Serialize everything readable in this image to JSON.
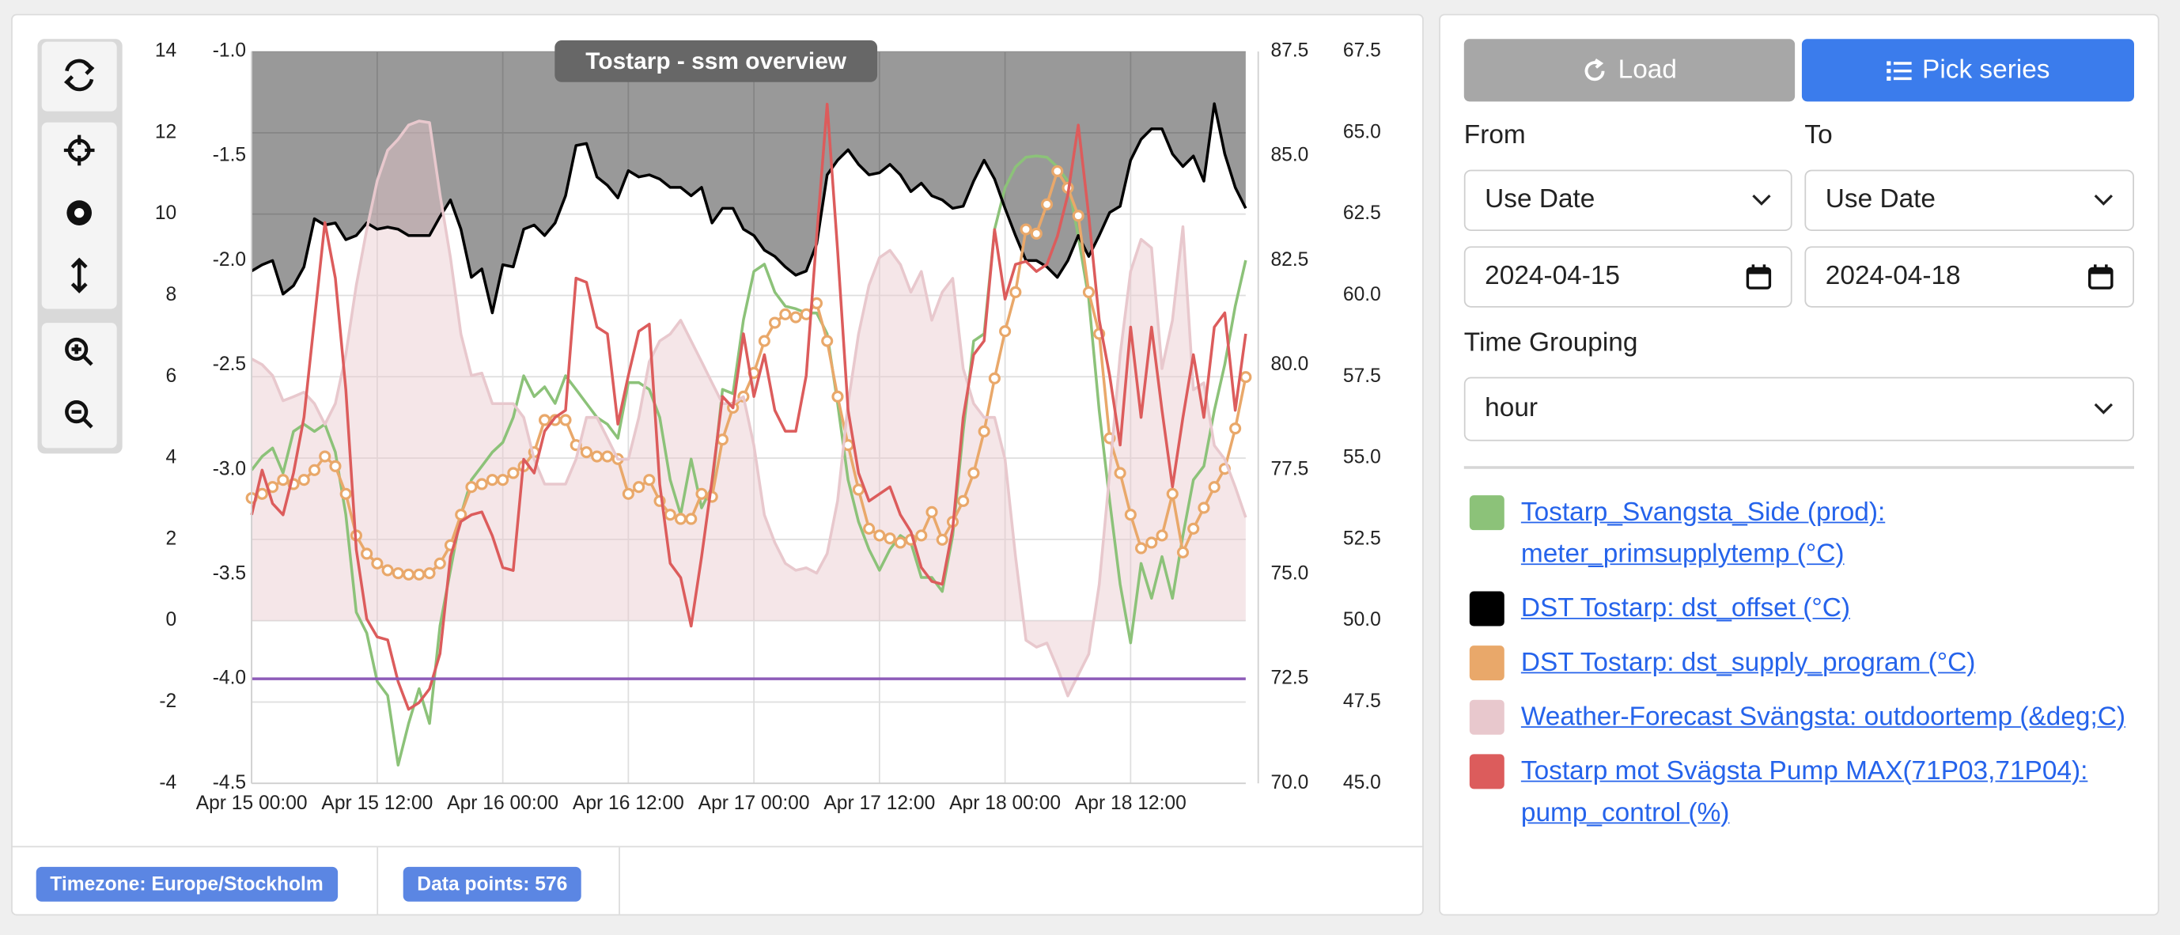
{
  "chart_data": {
    "type": "line",
    "title": "Tostarp - ssm overview",
    "grid": true,
    "categories": [
      "Apr 15 00:00",
      null,
      null,
      null,
      null,
      null,
      null,
      null,
      null,
      null,
      null,
      null,
      "Apr 15 12:00",
      null,
      null,
      null,
      null,
      null,
      null,
      null,
      null,
      null,
      null,
      null,
      "Apr 16 00:00",
      null,
      null,
      null,
      null,
      null,
      null,
      null,
      null,
      null,
      null,
      null,
      "Apr 16 12:00",
      null,
      null,
      null,
      null,
      null,
      null,
      null,
      null,
      null,
      null,
      null,
      "Apr 17 00:00",
      null,
      null,
      null,
      null,
      null,
      null,
      null,
      null,
      null,
      null,
      null,
      "Apr 17 12:00",
      null,
      null,
      null,
      null,
      null,
      null,
      null,
      null,
      null,
      null,
      null,
      "Apr 18 00:00",
      null,
      null,
      null,
      null,
      null,
      null,
      null,
      null,
      null,
      null,
      null,
      "Apr 18 12:00",
      null,
      null,
      null,
      null,
      null,
      null,
      null,
      null,
      null,
      null,
      null
    ],
    "ylim": [
      -4,
      14
    ],
    "yticks": [
      -4,
      -2,
      0,
      2,
      4,
      6,
      8,
      10,
      12,
      14
    ],
    "y2lim": [
      -4.5,
      -1
    ],
    "y2ticks": [
      -4.5,
      {
        "value": -4,
        "label": "-4.0"
      },
      -3.5,
      {
        "value": -3,
        "label": "-3.0"
      },
      -2.5,
      {
        "value": -2,
        "label": "-2.0"
      },
      -1.5,
      {
        "value": -1,
        "label": "-1.0"
      }
    ],
    "y3lim": [
      70,
      87.5
    ],
    "y3ticks": [
      {
        "value": 70,
        "label": "70.0"
      },
      72.5,
      {
        "value": 75,
        "label": "75.0"
      },
      77.5,
      {
        "value": 80,
        "label": "80.0"
      },
      82.5,
      {
        "value": 85,
        "label": "85.0"
      },
      87.5
    ],
    "y4lim": [
      45,
      67.5
    ],
    "y4ticks": [
      {
        "value": 45,
        "label": "45.0"
      },
      47.5,
      {
        "value": 50,
        "label": "50.0"
      },
      52.5,
      {
        "value": 55,
        "label": "55.0"
      },
      57.5,
      {
        "value": 60,
        "label": "60.0"
      },
      62.5,
      {
        "value": 65,
        "label": "65.0"
      },
      67.5
    ],
    "series": [
      {
        "name": "Tostarp_Svangsta_Side (prod): meter_primsupplytemp (°C)",
        "color": "#8cc279",
        "axis": "y4",
        "values": [
          54.63,
          55.05,
          55.31,
          54.54,
          55.82,
          56.04,
          55.82,
          56.04,
          55.18,
          53.26,
          50.26,
          49.62,
          48.13,
          47.7,
          45.56,
          46.84,
          47.91,
          46.84,
          49.84,
          51.55,
          53.26,
          54.33,
          54.75,
          55.18,
          55.48,
          56.25,
          57.53,
          56.89,
          57.19,
          56.68,
          57.53,
          57.11,
          56.68,
          56.25,
          56.04,
          55.61,
          57.32,
          57.32,
          57.11,
          56.25,
          54.33,
          53.26,
          54.97,
          53.47,
          54.11,
          57.11,
          56.98,
          59.25,
          60.74,
          60.96,
          60.1,
          59.67,
          59.59,
          59.46,
          59.46,
          58.82,
          56.68,
          54.33,
          53.04,
          52.19,
          51.55,
          52.19,
          52.62,
          52.4,
          51.33,
          51.33,
          50.9,
          52.62,
          55.82,
          58.6,
          58.82,
          62.03,
          63.31,
          63.95,
          64.25,
          64.29,
          64.25,
          63.95,
          63.52,
          61.81,
          59.89,
          56.46,
          53.68,
          51.12,
          49.32,
          51.76,
          50.69,
          51.97,
          50.69,
          52.62,
          54.33,
          54.75,
          56.46,
          57.88,
          59.67,
          61.08
        ]
      },
      {
        "name": "DST Tostarp: dst_offset (°C)",
        "color": "#000000",
        "axis": "y2",
        "area": "above",
        "values": [
          -2.05,
          -2.02,
          -2.0,
          -2.16,
          -2.12,
          -2.03,
          -1.8,
          -1.83,
          -1.82,
          -1.9,
          -1.88,
          -1.82,
          -1.85,
          -1.84,
          -1.85,
          -1.88,
          -1.88,
          -1.88,
          -1.79,
          -1.71,
          -1.85,
          -2.08,
          -2.04,
          -2.25,
          -2.02,
          -2.03,
          -1.85,
          -1.83,
          -1.88,
          -1.82,
          -1.69,
          -1.45,
          -1.44,
          -1.6,
          -1.64,
          -1.7,
          -1.57,
          -1.6,
          -1.59,
          -1.61,
          -1.65,
          -1.65,
          -1.69,
          -1.65,
          -1.82,
          -1.75,
          -1.75,
          -1.85,
          -1.88,
          -1.95,
          -1.98,
          -2.03,
          -2.07,
          -2.05,
          -1.92,
          -1.59,
          -1.52,
          -1.47,
          -1.54,
          -1.59,
          -1.58,
          -1.54,
          -1.59,
          -1.67,
          -1.63,
          -1.69,
          -1.71,
          -1.75,
          -1.74,
          -1.62,
          -1.52,
          -1.61,
          -1.75,
          -1.88,
          -2.0,
          -2.0,
          -2.03,
          -2.08,
          -2.0,
          -1.88,
          -1.98,
          -1.88,
          -1.77,
          -1.74,
          -1.52,
          -1.42,
          -1.37,
          -1.37,
          -1.49,
          -1.55,
          -1.5,
          -1.62,
          -1.25,
          -1.49,
          -1.65,
          -1.75
        ]
      },
      {
        "name": "DST Tostarp: dst_supply_program (°C)",
        "color": "#e9a86a",
        "axis": "y4",
        "markers": true,
        "values": [
          53.77,
          53.9,
          54.11,
          54.33,
          54.2,
          54.33,
          54.63,
          55.05,
          54.75,
          53.9,
          52.62,
          52.06,
          51.76,
          51.55,
          51.46,
          51.42,
          51.42,
          51.46,
          51.76,
          52.32,
          53.26,
          54.11,
          54.2,
          54.33,
          54.33,
          54.54,
          54.75,
          55.18,
          56.17,
          56.17,
          56.17,
          55.4,
          55.18,
          55.05,
          55.05,
          54.97,
          53.9,
          54.11,
          54.33,
          53.68,
          53.26,
          53.13,
          53.13,
          53.9,
          53.81,
          55.57,
          56.55,
          56.89,
          57.62,
          58.6,
          59.16,
          59.42,
          59.33,
          59.42,
          59.76,
          58.6,
          56.89,
          55.4,
          54.03,
          52.83,
          52.62,
          52.53,
          52.4,
          52.49,
          52.62,
          53.34,
          52.49,
          53.04,
          53.68,
          54.54,
          55.82,
          57.45,
          58.9,
          60.1,
          62.03,
          61.9,
          62.8,
          63.82,
          63.31,
          62.45,
          60.1,
          58.82,
          55.61,
          54.54,
          53.26,
          52.23,
          52.4,
          52.62,
          53.9,
          52.1,
          52.83,
          53.47,
          54.11,
          54.67,
          55.91,
          57.49
        ]
      },
      {
        "name": "Weather-Forecast Svängsta: outdoortemp (&deg;C)",
        "color": "#e8c8cd",
        "axis": "y",
        "area": "zero",
        "values": [
          6.44,
          6.3,
          6.03,
          5.41,
          5.51,
          5.62,
          5.34,
          4.83,
          5.34,
          6.54,
          8.25,
          9.62,
          10.82,
          11.57,
          11.84,
          12.19,
          12.29,
          12.25,
          10.48,
          8.93,
          7.05,
          6.03,
          6.09,
          5.34,
          5.34,
          5.34,
          5.0,
          3.97,
          3.36,
          3.36,
          3.36,
          3.97,
          5.0,
          5.0,
          4.49,
          3.97,
          3.97,
          5.0,
          6.37,
          6.88,
          7.05,
          7.39,
          6.88,
          6.37,
          5.85,
          5.34,
          5.34,
          5.51,
          4.31,
          2.6,
          1.92,
          1.41,
          1.24,
          1.3,
          1.17,
          1.65,
          2.95,
          5.34,
          7.05,
          8.25,
          8.93,
          9.11,
          8.76,
          8.08,
          8.59,
          7.39,
          8.08,
          8.42,
          6.2,
          5.34,
          5.0,
          5.0,
          3.97,
          1.58,
          -0.48,
          -0.65,
          -0.55,
          -1.16,
          -1.85,
          -1.33,
          -0.82,
          0.89,
          3.63,
          6.54,
          8.59,
          9.38,
          9.17,
          6.2,
          7.39,
          9.69,
          5.68,
          5.85,
          4.31,
          3.97,
          3.29,
          2.54
        ]
      },
      {
        "name": "Tostarp mot Svägsta Pump MAX(71P03,71P04): pump_control (%)",
        "color": "#dc5c5c",
        "axis": "y3",
        "values": [
          76.42,
          77.49,
          76.69,
          76.42,
          77.42,
          78.75,
          81.08,
          83.41,
          82.08,
          79.42,
          75.59,
          73.93,
          73.5,
          73.43,
          72.43,
          71.77,
          71.93,
          72.26,
          73.1,
          75.42,
          76.26,
          76.42,
          76.49,
          75.92,
          75.16,
          75.09,
          77.75,
          77.42,
          78.42,
          78.75,
          78.92,
          82.08,
          81.98,
          80.91,
          80.75,
          78.59,
          79.75,
          80.81,
          80.98,
          77.15,
          75.26,
          74.92,
          73.76,
          75.42,
          77.25,
          79.25,
          78.98,
          80.75,
          79.25,
          80.25,
          78.92,
          78.42,
          78.42,
          79.75,
          83.08,
          86.24,
          82.74,
          78.92,
          77.42,
          76.75,
          76.92,
          77.09,
          76.42,
          76.02,
          75.16,
          74.83,
          74.76,
          76.09,
          78.75,
          80.25,
          80.58,
          83.24,
          81.58,
          82.41,
          82.48,
          82.24,
          82.41,
          83.08,
          84.07,
          85.74,
          83.57,
          81.08,
          79.75,
          78.09,
          80.91,
          78.75,
          80.91,
          78.92,
          77.09,
          78.75,
          80.25,
          78.75,
          80.91,
          81.25,
          78.92,
          80.75
        ]
      },
      {
        "color": "#8d5bb8",
        "axis": "y2",
        "values": [
          -4,
          -4,
          -4,
          -4,
          -4,
          -4,
          -4,
          -4,
          -4,
          -4,
          -4,
          -4,
          -4,
          -4,
          -4,
          -4,
          -4,
          -4,
          -4,
          -4,
          -4,
          -4,
          -4,
          -4,
          -4,
          -4,
          -4,
          -4,
          -4,
          -4,
          -4,
          -4,
          -4,
          -4,
          -4,
          -4,
          -4,
          -4,
          -4,
          -4,
          -4,
          -4,
          -4,
          -4,
          -4,
          -4,
          -4,
          -4,
          -4,
          -4,
          -4,
          -4,
          -4,
          -4,
          -4,
          -4,
          -4,
          -4,
          -4,
          -4,
          -4,
          -4,
          -4,
          -4,
          -4,
          -4,
          -4,
          -4,
          -4,
          -4,
          -4,
          -4,
          -4,
          -4,
          -4,
          -4,
          -4,
          -4,
          -4,
          -4,
          -4,
          -4,
          -4,
          -4,
          -4,
          -4,
          -4,
          -4,
          -4,
          -4,
          -4,
          -4,
          -4,
          -4,
          -4,
          -4
        ]
      }
    ]
  },
  "footer": {
    "timezone": "Timezone: Europe/Stockholm",
    "data_points": "Data points: 576"
  },
  "controls": {
    "load": "Load",
    "pick_series": "Pick series",
    "from_label": "From",
    "to_label": "To",
    "from_mode": "Use Date",
    "to_mode": "Use Date",
    "from_date": "2024-04-15",
    "to_date": "2024-04-18",
    "grouping_label": "Time Grouping",
    "grouping": "hour"
  }
}
